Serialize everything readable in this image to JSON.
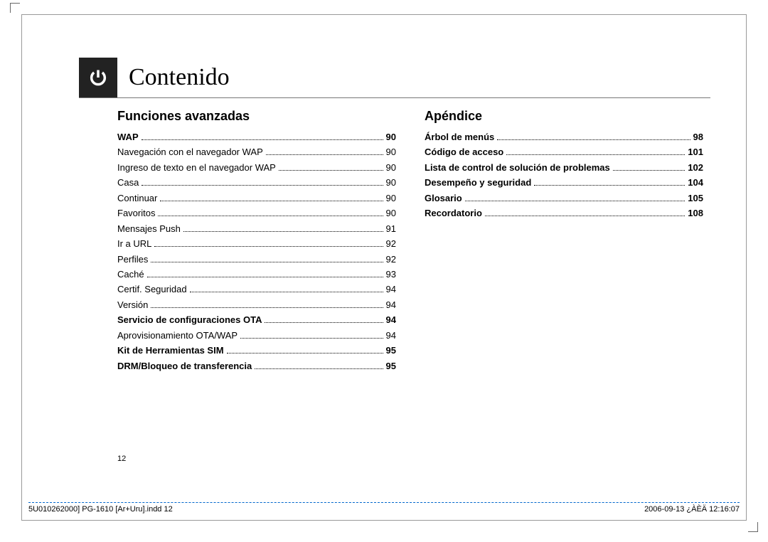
{
  "title": "Contenido",
  "page_number": "12",
  "left_column": {
    "heading": "Funciones avanzadas",
    "entries": [
      {
        "label": "WAP",
        "page": "90",
        "bold": true
      },
      {
        "label": "Navegación con el navegador WAP",
        "page": "90",
        "bold": false
      },
      {
        "label": "Ingreso de texto en el navegador WAP",
        "page": "90",
        "bold": false
      },
      {
        "label": "Casa",
        "page": "90",
        "bold": false
      },
      {
        "label": "Continuar",
        "page": "90",
        "bold": false
      },
      {
        "label": "Favoritos",
        "page": "90",
        "bold": false
      },
      {
        "label": "Mensajes Push",
        "page": "91",
        "bold": false
      },
      {
        "label": "Ir a URL",
        "page": "92",
        "bold": false
      },
      {
        "label": "Perfiles",
        "page": "92",
        "bold": false
      },
      {
        "label": "Caché",
        "page": "93",
        "bold": false
      },
      {
        "label": "Certif. Seguridad",
        "page": "94",
        "bold": false
      },
      {
        "label": "Versión",
        "page": "94",
        "bold": false
      },
      {
        "label": "Servicio de configuraciones OTA",
        "page": "94",
        "bold": true
      },
      {
        "label": "Aprovisionamiento OTA/WAP",
        "page": "94",
        "bold": false
      },
      {
        "label": "Kit de Herramientas SIM",
        "page": "95",
        "bold": true
      },
      {
        "label": "DRM/Bloqueo de transferencia",
        "page": "95",
        "bold": true
      }
    ]
  },
  "right_column": {
    "heading": "Apéndice",
    "entries": [
      {
        "label": "Árbol de menús",
        "page": "98",
        "bold": true
      },
      {
        "label": "Código de acceso",
        "page": "101",
        "bold": true
      },
      {
        "label": "Lista de control de solución de problemas",
        "page": "102",
        "bold": true
      },
      {
        "label": "Desempeño y seguridad",
        "page": "104",
        "bold": true
      },
      {
        "label": "Glosario",
        "page": "105",
        "bold": true
      },
      {
        "label": "Recordatorio",
        "page": "108",
        "bold": true
      }
    ]
  },
  "footer": {
    "left": "5U010262000] PG-1610 [Ar+Uru].indd   12",
    "right": "2006-09-13   ¿ÀÈÄ 12:16:07"
  },
  "colors": {
    "tab_bg": "#222222",
    "icon_stroke": "#ffffff",
    "border": "#999999",
    "footer_rule": "#0066cc",
    "text": "#000000"
  }
}
